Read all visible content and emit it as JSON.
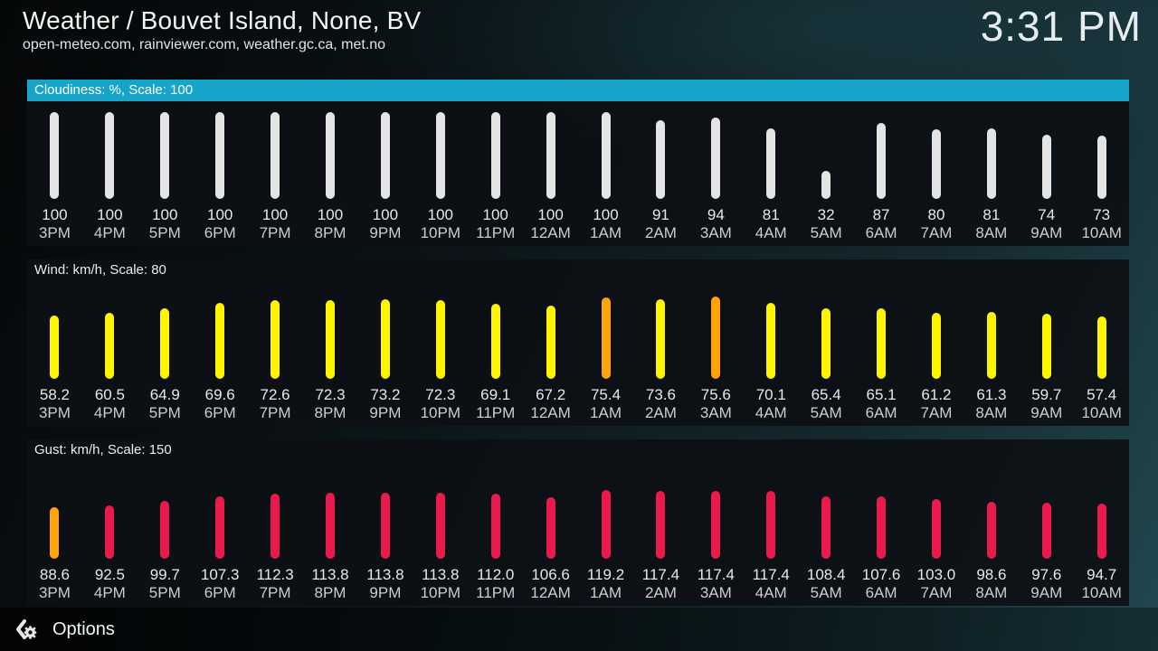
{
  "header": {
    "title": "Weather / Bouvet Island, None, BV",
    "subtitle": "open-meteo.com, rainviewer.com, weather.gc.ca, met.no",
    "clock": "3:31 PM"
  },
  "footer": {
    "options_label": "Options"
  },
  "colors": {
    "accent": "#16a4c8",
    "bar_white": "#e4e4e4",
    "bar_yellow": "#fdf500",
    "bar_orange": "#ffa408",
    "bar_red": "#e91a4c"
  },
  "chart_data": [
    {
      "type": "bar",
      "id": "cloudiness",
      "title": "Cloudiness: %, Scale: 100",
      "scale": 100,
      "ylim": [
        0,
        100
      ],
      "selected": true,
      "categories": [
        "3PM",
        "4PM",
        "5PM",
        "6PM",
        "7PM",
        "8PM",
        "9PM",
        "10PM",
        "11PM",
        "12AM",
        "1AM",
        "2AM",
        "3AM",
        "4AM",
        "5AM",
        "6AM",
        "7AM",
        "8AM",
        "9AM",
        "10AM"
      ],
      "values": [
        100,
        100,
        100,
        100,
        100,
        100,
        100,
        100,
        100,
        100,
        100,
        91,
        94,
        81,
        32,
        87,
        80,
        81,
        74,
        73
      ],
      "value_labels": [
        "100",
        "100",
        "100",
        "100",
        "100",
        "100",
        "100",
        "100",
        "100",
        "100",
        "100",
        "91",
        "94",
        "81",
        "32",
        "87",
        "80",
        "81",
        "74",
        "73"
      ],
      "bar_colors": [
        "white",
        "white",
        "white",
        "white",
        "white",
        "white",
        "white",
        "white",
        "white",
        "white",
        "white",
        "white",
        "white",
        "white",
        "white",
        "white",
        "white",
        "white",
        "white",
        "white"
      ]
    },
    {
      "type": "bar",
      "id": "wind",
      "title": "Wind: km/h, Scale: 80",
      "scale": 80,
      "ylim": [
        0,
        80
      ],
      "selected": false,
      "categories": [
        "3PM",
        "4PM",
        "5PM",
        "6PM",
        "7PM",
        "8PM",
        "9PM",
        "10PM",
        "11PM",
        "12AM",
        "1AM",
        "2AM",
        "3AM",
        "4AM",
        "5AM",
        "6AM",
        "7AM",
        "8AM",
        "9AM",
        "10AM"
      ],
      "values": [
        58.2,
        60.5,
        64.9,
        69.6,
        72.6,
        72.3,
        73.2,
        72.3,
        69.1,
        67.2,
        75.4,
        73.6,
        75.6,
        70.1,
        65.4,
        65.1,
        61.2,
        61.3,
        59.7,
        57.4
      ],
      "value_labels": [
        "58.2",
        "60.5",
        "64.9",
        "69.6",
        "72.6",
        "72.3",
        "73.2",
        "72.3",
        "69.1",
        "67.2",
        "75.4",
        "73.6",
        "75.6",
        "70.1",
        "65.4",
        "65.1",
        "61.2",
        "61.3",
        "59.7",
        "57.4"
      ],
      "bar_colors": [
        "yellow",
        "yellow",
        "yellow",
        "yellow",
        "yellow",
        "yellow",
        "yellow",
        "yellow",
        "yellow",
        "yellow",
        "orange",
        "yellow",
        "orange",
        "yellow",
        "yellow",
        "yellow",
        "yellow",
        "yellow",
        "yellow",
        "yellow"
      ]
    },
    {
      "type": "bar",
      "id": "gust",
      "title": "Gust: km/h, Scale: 150",
      "scale": 150,
      "ylim": [
        0,
        150
      ],
      "selected": false,
      "categories": [
        "3PM",
        "4PM",
        "5PM",
        "6PM",
        "7PM",
        "8PM",
        "9PM",
        "10PM",
        "11PM",
        "12AM",
        "1AM",
        "2AM",
        "3AM",
        "4AM",
        "5AM",
        "6AM",
        "7AM",
        "8AM",
        "9AM",
        "10AM"
      ],
      "values": [
        88.6,
        92.5,
        99.7,
        107.3,
        112.3,
        113.8,
        113.8,
        113.8,
        112.0,
        106.6,
        119.2,
        117.4,
        117.4,
        117.4,
        108.4,
        107.6,
        103.0,
        98.6,
        97.6,
        94.7
      ],
      "value_labels": [
        "88.6",
        "92.5",
        "99.7",
        "107.3",
        "112.3",
        "113.8",
        "113.8",
        "113.8",
        "112.0",
        "106.6",
        "119.2",
        "117.4",
        "117.4",
        "117.4",
        "108.4",
        "107.6",
        "103.0",
        "98.6",
        "97.6",
        "94.7"
      ],
      "bar_colors": [
        "orange",
        "red",
        "red",
        "red",
        "red",
        "red",
        "red",
        "red",
        "red",
        "red",
        "red",
        "red",
        "red",
        "red",
        "red",
        "red",
        "red",
        "red",
        "red",
        "red"
      ]
    }
  ]
}
